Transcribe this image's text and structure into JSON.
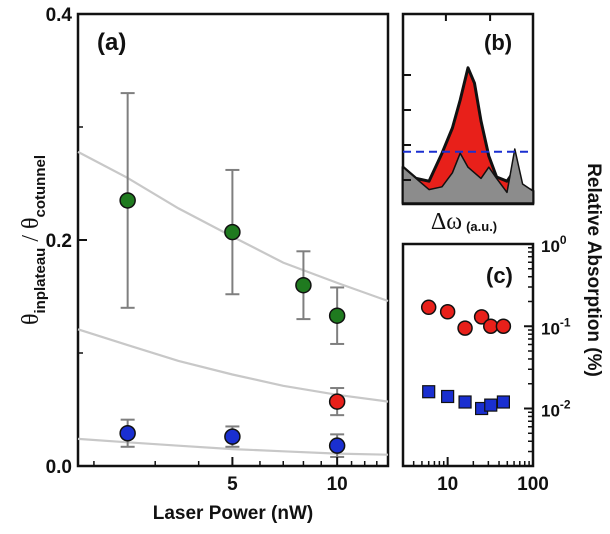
{
  "colors": {
    "green": "#1f7a1f",
    "red": "#e8201a",
    "blue": "#1a2fd0",
    "errorbar": "#7f7f7f",
    "fitline": "#c8c8c8",
    "gray_fill": "#8c8c8c",
    "dashed": "#1a2fd0"
  },
  "chart_data": [
    {
      "panel": "(a)",
      "type": "scatter",
      "xlabel": "Laser Power (nW)",
      "ylabel_main": "θ",
      "ylabel_sub1": "inplateau",
      "ylabel_slash": " / θ",
      "ylabel_sub2": "cotunnel",
      "xscale": "log",
      "xlim": [
        1.8,
        14
      ],
      "ylim": [
        0,
        0.4
      ],
      "xticks": [
        5,
        10
      ],
      "xtick_labels": [
        "5",
        "10"
      ],
      "yticks": [
        0.0,
        0.2,
        0.4
      ],
      "ytick_labels": [
        "0.0",
        "0.2",
        "0.4"
      ],
      "series": [
        {
          "color": "green",
          "points": [
            {
              "x": 2.5,
              "y": 0.235,
              "err": 0.095
            },
            {
              "x": 5,
              "y": 0.207,
              "err": 0.055
            },
            {
              "x": 8,
              "y": 0.16,
              "err": 0.03
            },
            {
              "x": 10,
              "y": 0.133,
              "err": 0.025
            }
          ],
          "fit": [
            [
              1.8,
              0.278
            ],
            [
              2.5,
              0.255
            ],
            [
              3.5,
              0.228
            ],
            [
              5,
              0.203
            ],
            [
              7,
              0.18
            ],
            [
              10,
              0.162
            ],
            [
              14,
              0.146
            ]
          ]
        },
        {
          "color": "red",
          "points": [
            {
              "x": 10,
              "y": 0.057,
              "err": 0.012
            }
          ],
          "fit": [
            [
              1.8,
              0.121
            ],
            [
              2.5,
              0.107
            ],
            [
              3.5,
              0.093
            ],
            [
              5,
              0.081
            ],
            [
              7,
              0.071
            ],
            [
              10,
              0.063
            ],
            [
              14,
              0.057
            ]
          ]
        },
        {
          "color": "blue",
          "points": [
            {
              "x": 2.5,
              "y": 0.029,
              "err": 0.012
            },
            {
              "x": 5,
              "y": 0.026,
              "err": 0.009
            },
            {
              "x": 10,
              "y": 0.018,
              "err": 0.01
            }
          ],
          "fit": [
            [
              1.8,
              0.024
            ],
            [
              2.5,
              0.021
            ],
            [
              3.5,
              0.018
            ],
            [
              5,
              0.015
            ],
            [
              7,
              0.013
            ],
            [
              10,
              0.011
            ],
            [
              14,
              0.01
            ]
          ]
        }
      ]
    },
    {
      "panel": "(b)",
      "type": "area",
      "xlabel_main": "Δω",
      "xlabel_sub": "(a.u.)",
      "x": [
        0,
        0.1,
        0.2,
        0.3,
        0.38,
        0.44,
        0.5,
        0.55,
        0.6,
        0.66,
        0.72,
        0.8,
        0.86,
        0.92,
        1.0
      ],
      "series": [
        {
          "name_color": "red",
          "values": [
            0.22,
            0.14,
            0.12,
            0.32,
            0.5,
            0.7,
            0.93,
            0.82,
            0.55,
            0.3,
            0.15,
            0.12,
            0.2,
            0.08,
            0.05
          ]
        },
        {
          "name_color": "gray",
          "values": [
            0.22,
            0.14,
            0.06,
            0.08,
            0.18,
            0.32,
            0.22,
            0.18,
            0.14,
            0.22,
            0.14,
            0.04,
            0.35,
            0.1,
            0.05
          ]
        }
      ],
      "dashed_level": 0.33,
      "ylim": [
        0,
        1
      ]
    },
    {
      "panel": "(c)",
      "type": "scatter",
      "ylabel": "Relative Absorption (%)",
      "xscale": "log",
      "yscale": "log",
      "xlim": [
        3,
        100
      ],
      "ylim": [
        0.002,
        1
      ],
      "xticks": [
        10,
        100
      ],
      "xtick_labels": [
        "10",
        "100"
      ],
      "yticks": [
        0.01,
        0.1,
        1
      ],
      "ytick_labels": [
        "10",
        "10",
        "10"
      ],
      "ytick_exponents": [
        "-2",
        "-1",
        "0"
      ],
      "series": [
        {
          "color": "red",
          "marker": "circle",
          "x": [
            6,
            10,
            16,
            25,
            32,
            45
          ],
          "y": [
            0.17,
            0.15,
            0.095,
            0.13,
            0.1,
            0.1
          ]
        },
        {
          "color": "blue",
          "marker": "square",
          "x": [
            6,
            10,
            16,
            25,
            32,
            45
          ],
          "y": [
            0.016,
            0.014,
            0.012,
            0.01,
            0.011,
            0.012
          ]
        }
      ]
    }
  ]
}
